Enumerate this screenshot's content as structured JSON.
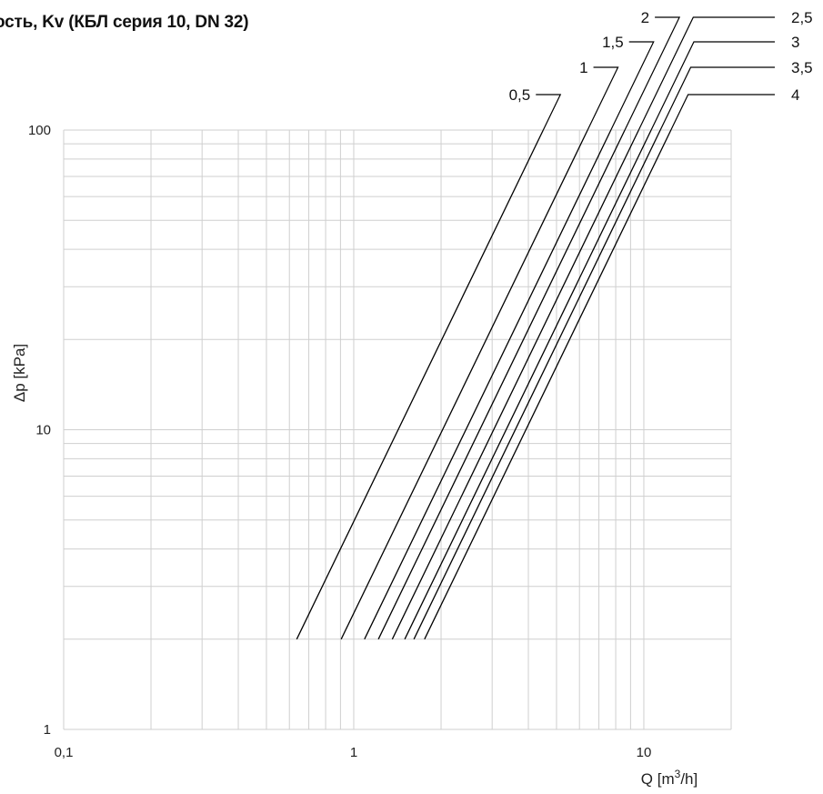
{
  "chart_data": {
    "type": "line",
    "title": "ость, Kv (КБЛ серия 10, DN 32)",
    "xlabel": "Q  [m³/h]",
    "ylabel": "Δp  [kPa]",
    "x_scale": "log",
    "y_scale": "log",
    "xlim": [
      0.1,
      20
    ],
    "ylim": [
      1,
      100
    ],
    "x_ticks": [
      {
        "value": 0.1,
        "label": "0,1"
      },
      {
        "value": 1,
        "label": "1"
      },
      {
        "value": 10,
        "label": "10"
      }
    ],
    "y_ticks": [
      {
        "value": 1,
        "label": "1"
      },
      {
        "value": 10,
        "label": "10"
      },
      {
        "value": 100,
        "label": "100"
      }
    ],
    "grid": true,
    "legend_placement": "top-right",
    "line_color": "#000000",
    "grid_color": "#cfcfcf",
    "series": [
      {
        "name": "0,5",
        "kv": 0.45,
        "x": [
          0.636,
          4.5
        ],
        "y": [
          2,
          100
        ]
      },
      {
        "name": "1",
        "kv": 0.64,
        "x": [
          0.905,
          6.4
        ],
        "y": [
          2,
          100
        ]
      },
      {
        "name": "1,5",
        "kv": 0.77,
        "x": [
          1.089,
          7.7
        ],
        "y": [
          2,
          100
        ]
      },
      {
        "name": "2",
        "kv": 0.86,
        "x": [
          1.216,
          8.6
        ],
        "y": [
          2,
          100
        ]
      },
      {
        "name": "2,5",
        "kv": 0.96,
        "x": [
          1.358,
          9.6
        ],
        "y": [
          2,
          100
        ]
      },
      {
        "name": "3",
        "kv": 1.06,
        "x": [
          1.499,
          10.6
        ],
        "y": [
          2,
          100
        ]
      },
      {
        "name": "3,5",
        "kv": 1.14,
        "x": [
          1.612,
          11.4
        ],
        "y": [
          2,
          100
        ]
      },
      {
        "name": "4",
        "kv": 1.24,
        "x": [
          1.754,
          12.4
        ],
        "y": [
          2,
          100
        ]
      }
    ]
  }
}
